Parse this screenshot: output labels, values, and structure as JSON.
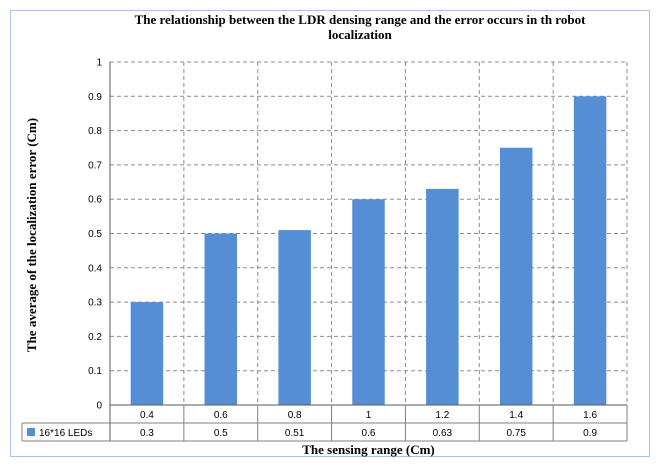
{
  "chart_data": {
    "type": "bar",
    "title": "The relationship between the LDR densing range and the error occurs in th robot localization",
    "title_lines": [
      "The relationship between the LDR densing range and the error occurs in th robot",
      "localization"
    ],
    "xlabel": "The sensing range (Cm)",
    "ylabel": "The average of the localization error (Cm)",
    "ylim": [
      0,
      1
    ],
    "yticks": [
      "0",
      "0.1",
      "0.2",
      "0.3",
      "0.4",
      "0.5",
      "0.6",
      "0.7",
      "0.8",
      "0.9",
      "1"
    ],
    "categories": [
      "0.4",
      "0.6",
      "0.8",
      "1",
      "1.2",
      "1.4",
      "1.6"
    ],
    "series": [
      {
        "name": "16*16 LEDs",
        "values": [
          0.3,
          0.5,
          0.51,
          0.6,
          0.63,
          0.75,
          0.9
        ],
        "labels": [
          "0.3",
          "0.5",
          "0.51",
          "0.6",
          "0.63",
          "0.75",
          "0.9"
        ]
      }
    ],
    "grid": true,
    "legend": "data-table",
    "bar_color": "#558ed5"
  }
}
